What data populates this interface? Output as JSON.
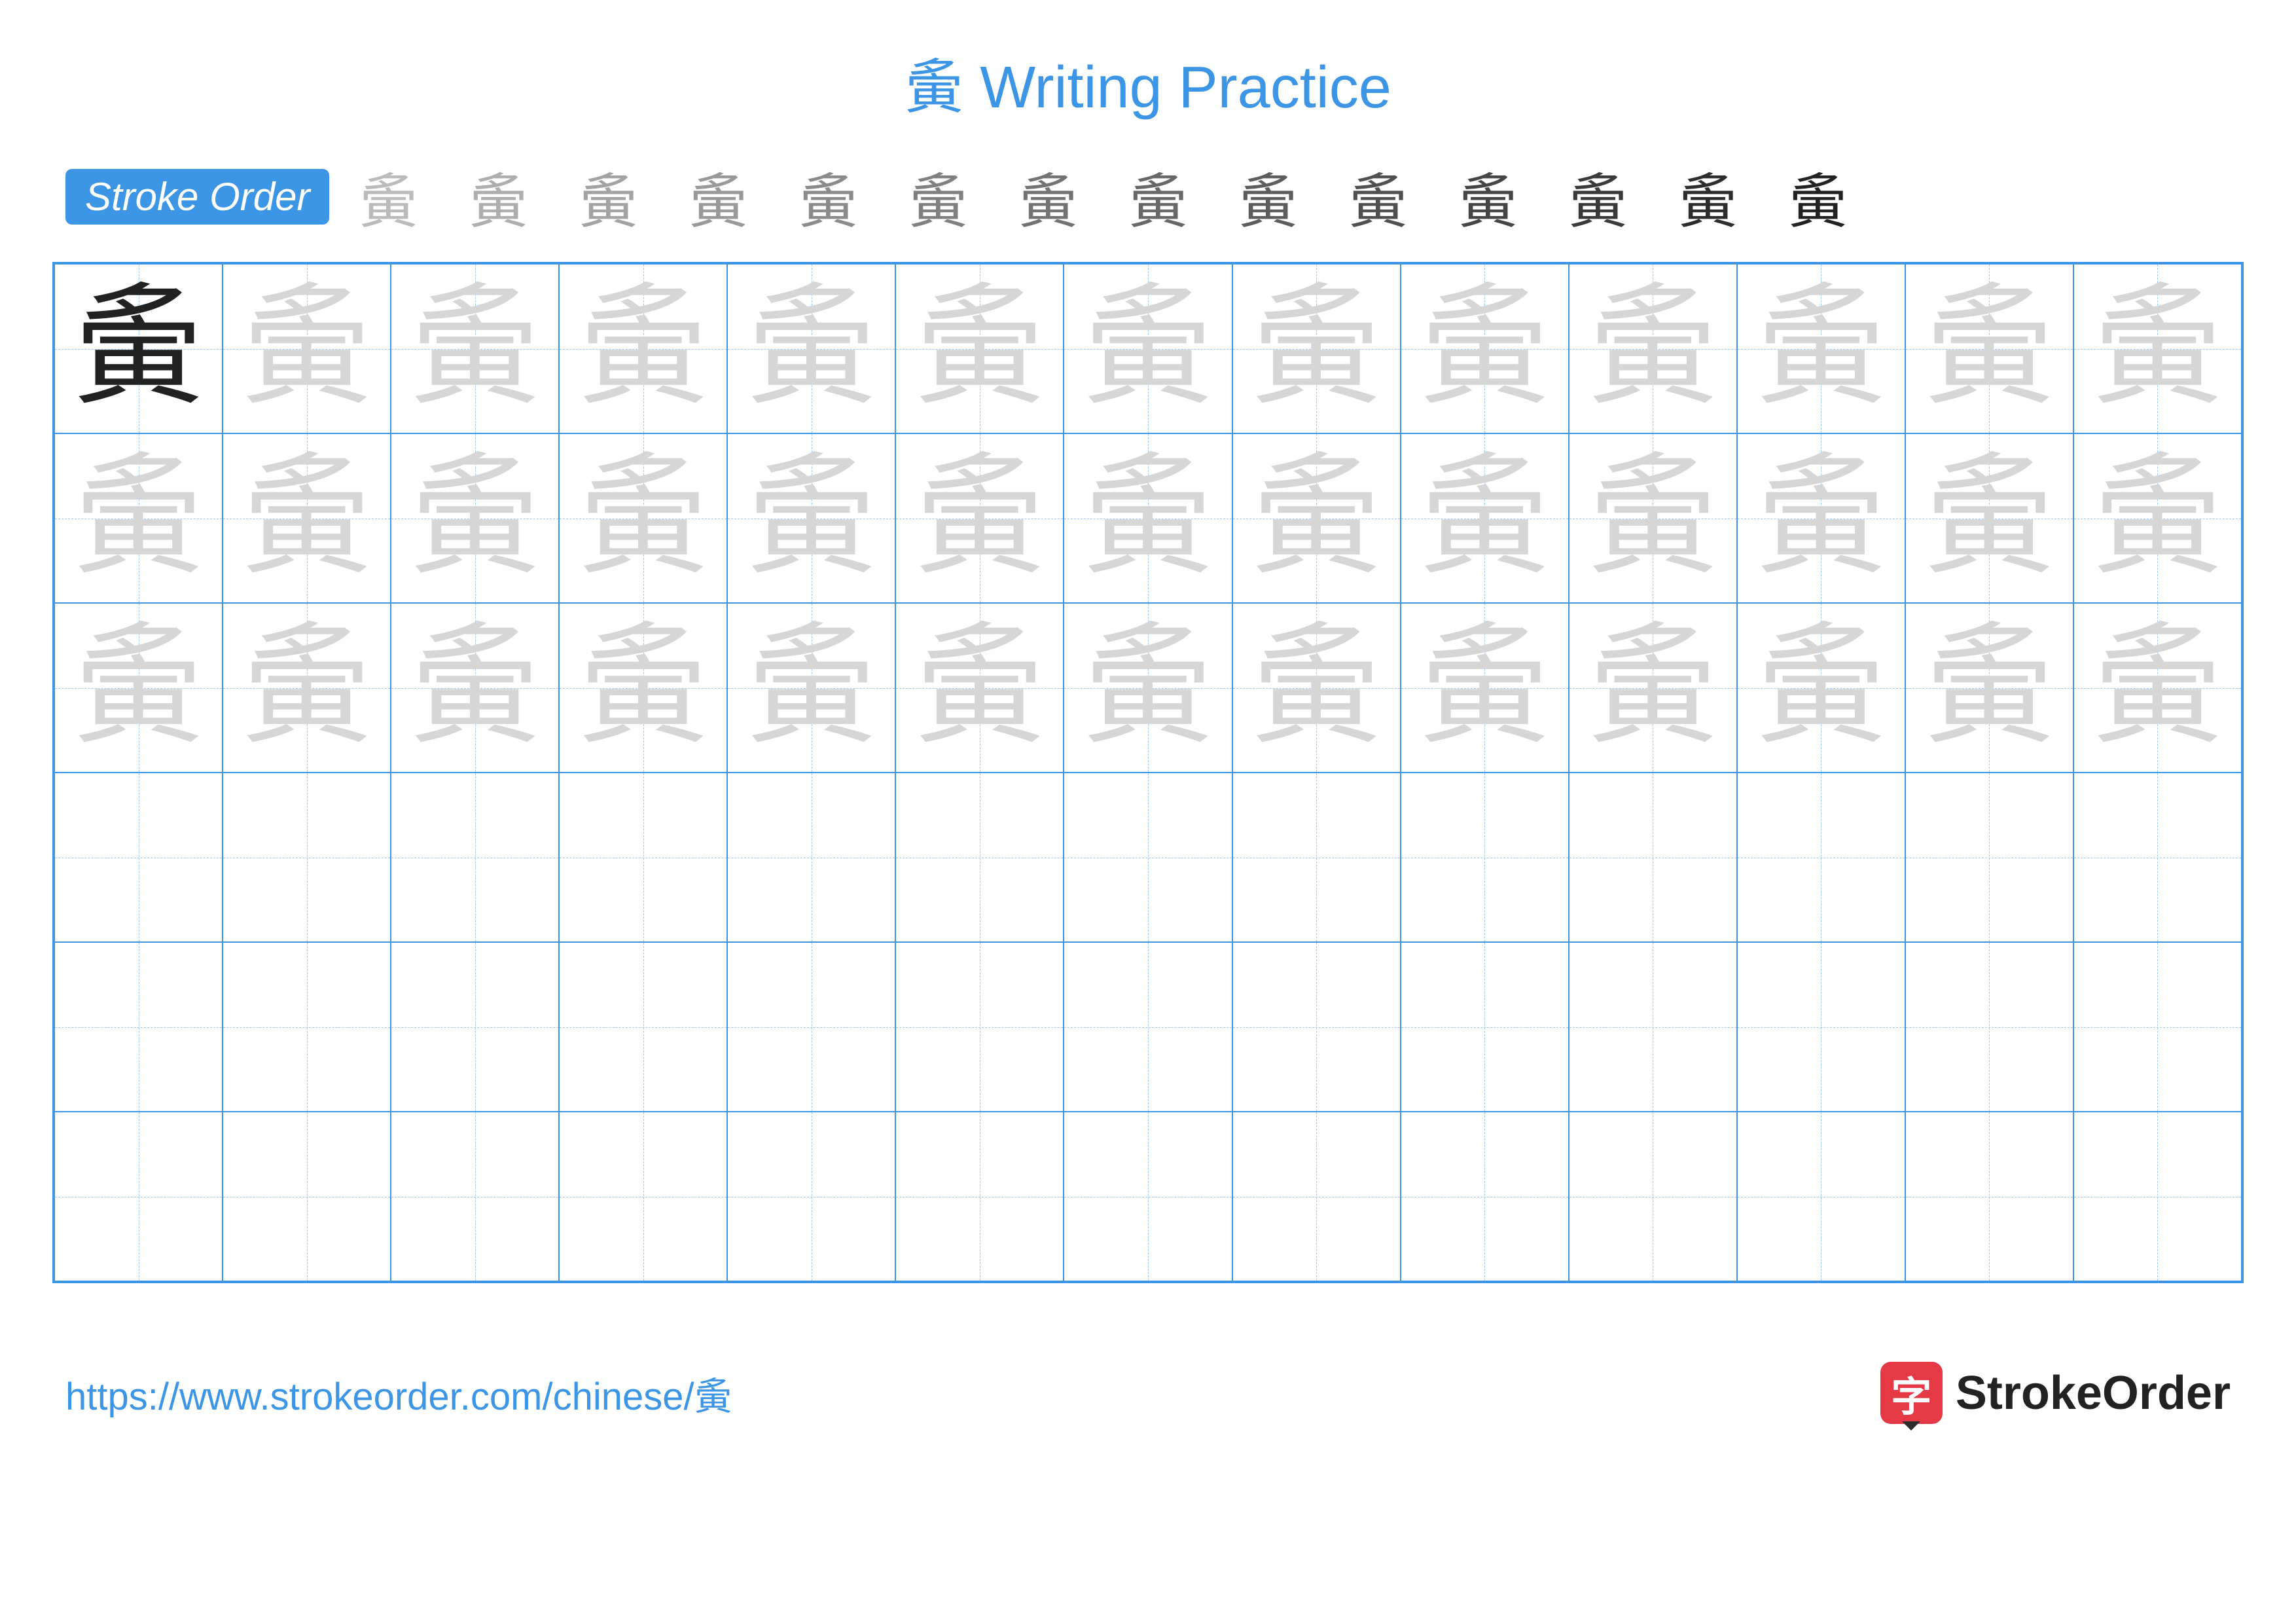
{
  "colors": {
    "accent": "#3d95e5",
    "grid_border": "#3d95e5",
    "dash": "#9cc7f0",
    "trace": "#d6d6d6",
    "solid_char": "#222222",
    "brand_bg": "#e63946",
    "brand_tip": "#2b2b2b"
  },
  "title": "夤 Writing Practice",
  "stroke_label": "Stroke Order",
  "character": "夤",
  "stroke_count": 14,
  "grid": {
    "cols": 13,
    "rows": 6,
    "trace_rows": 3,
    "solid_first": true
  },
  "footer": {
    "url": "https://www.strokeorder.com/chinese/夤",
    "brand_char": "字",
    "brand_text": "StrokeOrder"
  }
}
